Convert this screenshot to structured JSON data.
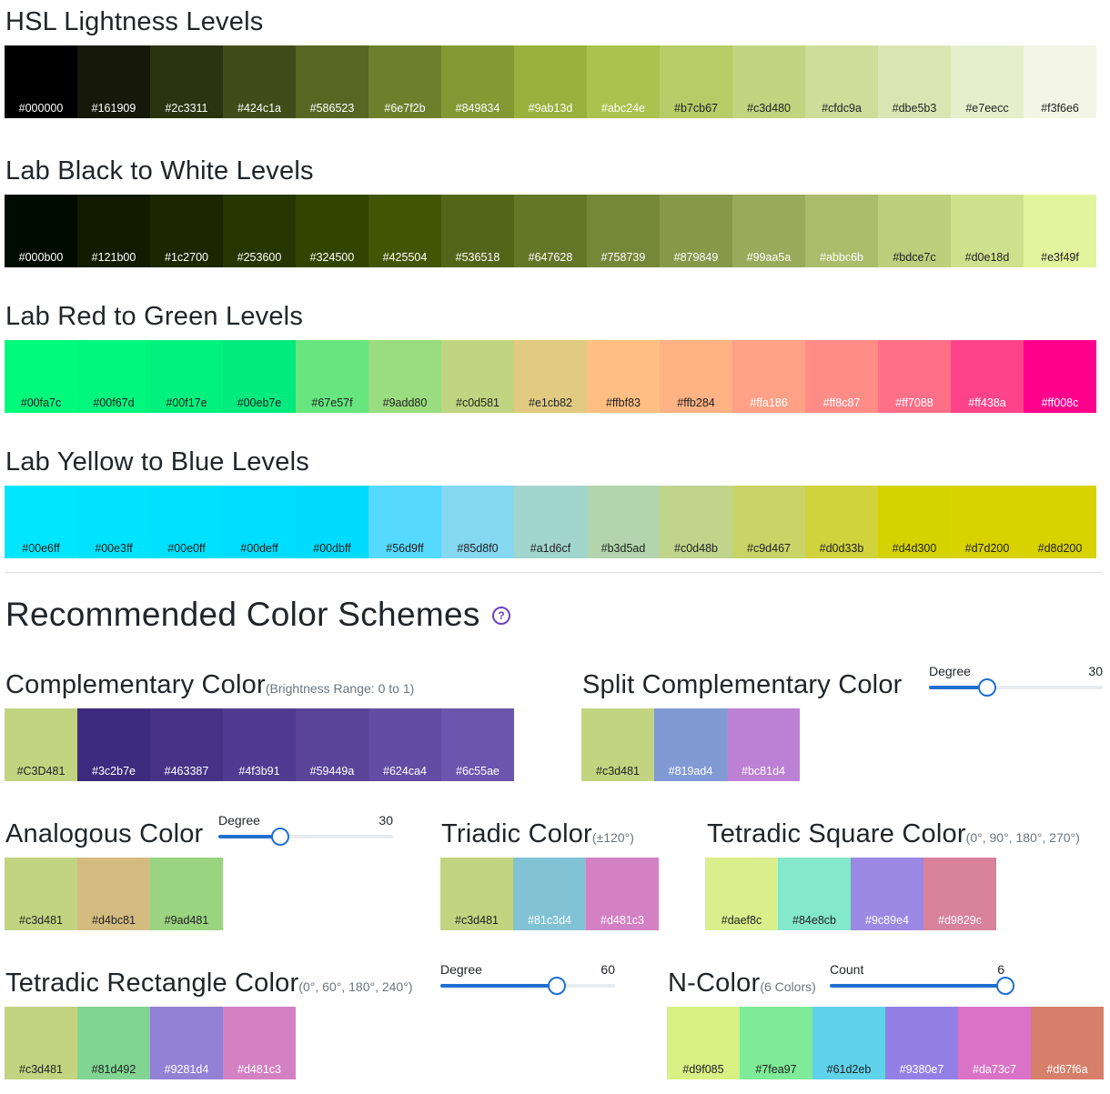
{
  "hsl": {
    "title": "HSL Lightness Levels",
    "swatches": [
      {
        "hex": "#000000",
        "text": "#ffffff"
      },
      {
        "hex": "#161909",
        "text": "#ffffff"
      },
      {
        "hex": "#2c3311",
        "text": "#ffffff"
      },
      {
        "hex": "#424c1a",
        "text": "#ffffff"
      },
      {
        "hex": "#586523",
        "text": "#ffffff"
      },
      {
        "hex": "#6e7f2b",
        "text": "#ffffff"
      },
      {
        "hex": "#849834",
        "text": "#ffffff"
      },
      {
        "hex": "#9ab13d",
        "text": "#ffffff"
      },
      {
        "hex": "#abc24e",
        "text": "#ffffff"
      },
      {
        "hex": "#b7cb67",
        "text": "#222222"
      },
      {
        "hex": "#c3d480",
        "text": "#222222"
      },
      {
        "hex": "#cfdc9a",
        "text": "#222222"
      },
      {
        "hex": "#dbe5b3",
        "text": "#222222"
      },
      {
        "hex": "#e7eecc",
        "text": "#222222"
      },
      {
        "hex": "#f3f6e6",
        "text": "#222222"
      }
    ]
  },
  "lab_bw": {
    "title": "Lab Black to White Levels",
    "swatches": [
      {
        "hex": "#000b00",
        "text": "#ffffff"
      },
      {
        "hex": "#121b00",
        "text": "#ffffff"
      },
      {
        "hex": "#1c2700",
        "text": "#ffffff"
      },
      {
        "hex": "#253600",
        "text": "#ffffff"
      },
      {
        "hex": "#324500",
        "text": "#ffffff"
      },
      {
        "hex": "#425504",
        "text": "#ffffff"
      },
      {
        "hex": "#536518",
        "text": "#ffffff"
      },
      {
        "hex": "#647628",
        "text": "#ffffff"
      },
      {
        "hex": "#758739",
        "text": "#ffffff"
      },
      {
        "hex": "#879849",
        "text": "#ffffff"
      },
      {
        "hex": "#99aa5a",
        "text": "#ffffff"
      },
      {
        "hex": "#abbc6b",
        "text": "#ffffff"
      },
      {
        "hex": "#bdce7c",
        "text": "#222222"
      },
      {
        "hex": "#d0e18d",
        "text": "#222222"
      },
      {
        "hex": "#e3f49f",
        "text": "#222222"
      }
    ]
  },
  "lab_rg": {
    "title": "Lab Red to Green Levels",
    "swatches": [
      {
        "hex": "#00fa7c",
        "text": "#222222"
      },
      {
        "hex": "#00f67d",
        "text": "#222222"
      },
      {
        "hex": "#00f17e",
        "text": "#222222"
      },
      {
        "hex": "#00eb7e",
        "text": "#222222"
      },
      {
        "hex": "#67e57f",
        "text": "#222222"
      },
      {
        "hex": "#9add80",
        "text": "#222222"
      },
      {
        "hex": "#c0d581",
        "text": "#222222"
      },
      {
        "hex": "#e1cb82",
        "text": "#222222"
      },
      {
        "hex": "#ffbf83",
        "text": "#222222"
      },
      {
        "hex": "#ffb284",
        "text": "#222222"
      },
      {
        "hex": "#ffa186",
        "text": "#ffffff"
      },
      {
        "hex": "#ff8c87",
        "text": "#ffffff"
      },
      {
        "hex": "#ff7088",
        "text": "#ffffff"
      },
      {
        "hex": "#ff438a",
        "text": "#ffffff"
      },
      {
        "hex": "#ff008c",
        "text": "#ffffff"
      }
    ]
  },
  "lab_yb": {
    "title": "Lab Yellow to Blue Levels",
    "swatches": [
      {
        "hex": "#00e6ff",
        "text": "#222222"
      },
      {
        "hex": "#00e3ff",
        "text": "#222222"
      },
      {
        "hex": "#00e0ff",
        "text": "#222222"
      },
      {
        "hex": "#00deff",
        "text": "#222222"
      },
      {
        "hex": "#00dbff",
        "text": "#222222"
      },
      {
        "hex": "#56d9ff",
        "text": "#222222"
      },
      {
        "hex": "#85d8f0",
        "text": "#222222"
      },
      {
        "hex": "#a1d6cf",
        "text": "#222222"
      },
      {
        "hex": "#b3d5ad",
        "text": "#222222"
      },
      {
        "hex": "#c0d48b",
        "text": "#222222"
      },
      {
        "hex": "#c9d467",
        "text": "#222222"
      },
      {
        "hex": "#d0d33b",
        "text": "#222222"
      },
      {
        "hex": "#d4d300",
        "text": "#222222"
      },
      {
        "hex": "#d7d200",
        "text": "#222222"
      },
      {
        "hex": "#d8d200",
        "text": "#222222"
      }
    ]
  },
  "schemes": {
    "title": "Recommended Color Schemes",
    "help_icon": "question-circle-icon",
    "complementary": {
      "title": "Complementary Color",
      "note": "(Brightness Range: 0 to 1)",
      "swatches": [
        {
          "hex": "#C3D481",
          "bg": "#c3d481",
          "text": "#222222"
        },
        {
          "hex": "#3c2b7e",
          "bg": "#3c2b7e",
          "text": "#ffffff"
        },
        {
          "hex": "#463387",
          "bg": "#463387",
          "text": "#ffffff"
        },
        {
          "hex": "#4f3b91",
          "bg": "#4f3b91",
          "text": "#ffffff"
        },
        {
          "hex": "#59449a",
          "bg": "#59449a",
          "text": "#ffffff"
        },
        {
          "hex": "#624ca4",
          "bg": "#624ca4",
          "text": "#ffffff"
        },
        {
          "hex": "#6c55ae",
          "bg": "#6c55ae",
          "text": "#ffffff"
        }
      ]
    },
    "split": {
      "title": "Split Complementary Color",
      "slider": {
        "label": "Degree",
        "value": "30",
        "fraction": 0.33
      },
      "swatches": [
        {
          "hex": "#c3d481",
          "bg": "#c3d481",
          "text": "#222222"
        },
        {
          "hex": "#819ad4",
          "bg": "#819ad4",
          "text": "#ffffff"
        },
        {
          "hex": "#bc81d4",
          "bg": "#bc81d4",
          "text": "#ffffff"
        }
      ]
    },
    "analogous": {
      "title": "Analogous Color",
      "slider": {
        "label": "Degree",
        "value": "30",
        "fraction": 0.35
      },
      "swatches": [
        {
          "hex": "#c3d481",
          "bg": "#c3d481",
          "text": "#222222"
        },
        {
          "hex": "#d4bc81",
          "bg": "#d4bc81",
          "text": "#222222"
        },
        {
          "hex": "#9ad481",
          "bg": "#9ad481",
          "text": "#222222"
        }
      ]
    },
    "triadic": {
      "title": "Triadic Color",
      "note": "(±120°)",
      "swatches": [
        {
          "hex": "#c3d481",
          "bg": "#c3d481",
          "text": "#222222"
        },
        {
          "hex": "#81c3d4",
          "bg": "#81c3d4",
          "text": "#ffffff"
        },
        {
          "hex": "#d481c3",
          "bg": "#d481c3",
          "text": "#ffffff"
        }
      ]
    },
    "tetradic_square": {
      "title": "Tetradic Square Color",
      "note": "(0°, 90°, 180°, 270°)",
      "swatches": [
        {
          "hex": "#daef8c",
          "bg": "#daef8c",
          "text": "#222222"
        },
        {
          "hex": "#84e8cb",
          "bg": "#84e8cb",
          "text": "#222222"
        },
        {
          "hex": "#9c89e4",
          "bg": "#9c89e4",
          "text": "#ffffff"
        },
        {
          "hex": "#d9829c",
          "bg": "#d9829c",
          "text": "#ffffff"
        }
      ]
    },
    "tetradic_rect": {
      "title": "Tetradic Rectangle Color",
      "note": "(0°, 60°, 180°, 240°)",
      "slider": {
        "label": "Degree",
        "value": "60",
        "fraction": 0.66
      },
      "swatches": [
        {
          "hex": "#c3d481",
          "bg": "#c3d481",
          "text": "#222222"
        },
        {
          "hex": "#81d492",
          "bg": "#81d492",
          "text": "#222222"
        },
        {
          "hex": "#9281d4",
          "bg": "#9281d4",
          "text": "#ffffff"
        },
        {
          "hex": "#d481c3",
          "bg": "#d481c3",
          "text": "#ffffff"
        }
      ]
    },
    "ncolor": {
      "title": "N-Color",
      "note": "(6 Colors)",
      "slider": {
        "label": "Count",
        "value": "6",
        "fraction": 1.0
      },
      "swatches": [
        {
          "hex": "#d9f085",
          "bg": "#d9f085",
          "text": "#222222"
        },
        {
          "hex": "#7fea97",
          "bg": "#7fea97",
          "text": "#222222"
        },
        {
          "hex": "#61d2eb",
          "bg": "#61d2eb",
          "text": "#222222"
        },
        {
          "hex": "#9380e7",
          "bg": "#9380e7",
          "text": "#ffffff"
        },
        {
          "hex": "#da73c7",
          "bg": "#da73c7",
          "text": "#ffffff"
        },
        {
          "hex": "#d67f6a",
          "bg": "#d67f6a",
          "text": "#ffffff"
        }
      ]
    }
  }
}
